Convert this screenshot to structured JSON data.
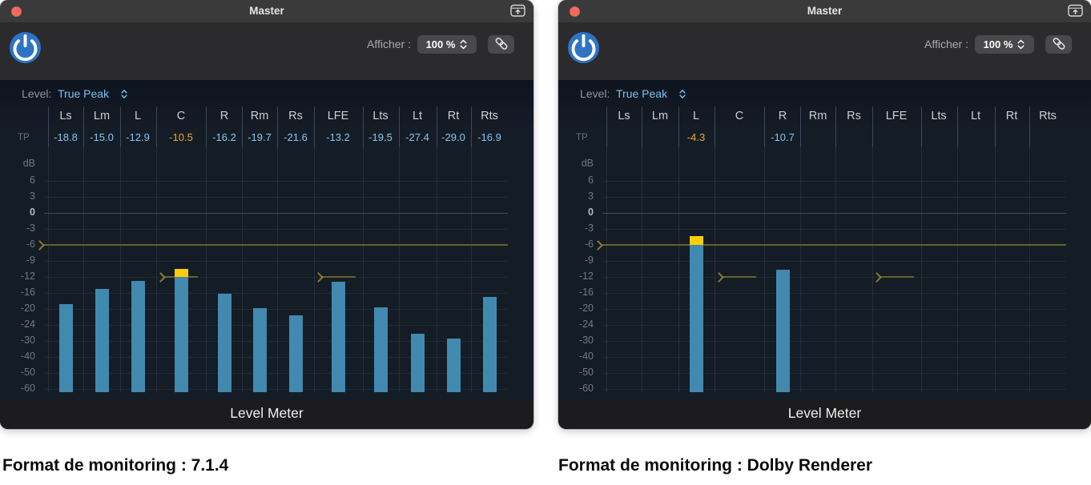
{
  "captions": {
    "left": "Format de monitoring : 7.1.4",
    "right": "Format de monitoring : Dolby Renderer"
  },
  "scale_ticks": [
    "6",
    "3",
    "0",
    "-3",
    "-6",
    "-9",
    "-12",
    "-16",
    "-20",
    "-24",
    "-30",
    "-40",
    "-50",
    "-60"
  ],
  "colors": {
    "bar_blue": "#4189ae",
    "peak_yellow": "#fccd08",
    "tp_text_blue": "#86c7ee",
    "tp_text_yellow": "#eaac29",
    "threshold_olive": "#6b6028",
    "channel_label": "#cacfd5",
    "db_label": "#6e7a89",
    "db_zero_label": "#b4bcc7",
    "level_value_blue": "#79c1f4",
    "power_blue": "#2e74c4",
    "close_red": "#ec6b5d"
  },
  "windows": [
    {
      "title": "Master",
      "afficher_label": "Afficher :",
      "zoom_value": "100 %",
      "level_label": "Level:",
      "level_value": "True Peak",
      "tp_row_label": "TP",
      "db_axis_label": "dB",
      "footer_label": "Level Meter",
      "thresholds": {
        "default": -6,
        "C": -12,
        "LFE": -12
      },
      "channels": [
        {
          "name": "Ls",
          "tp": "-18.8",
          "value": -18.8,
          "over": false
        },
        {
          "name": "Lm",
          "tp": "-15.0",
          "value": -15.0,
          "over": false
        },
        {
          "name": "L",
          "tp": "-12.9",
          "value": -12.9,
          "over": false
        },
        {
          "name": "C",
          "tp": "-10.5",
          "value": -10.5,
          "over": true
        },
        {
          "name": "R",
          "tp": "-16.2",
          "value": -16.2,
          "over": false
        },
        {
          "name": "Rm",
          "tp": "-19.7",
          "value": -19.7,
          "over": false
        },
        {
          "name": "Rs",
          "tp": "-21.6",
          "value": -21.6,
          "over": false
        },
        {
          "name": "LFE",
          "tp": "-13.2",
          "value": -13.2,
          "over": false
        },
        {
          "name": "Lts",
          "tp": "-19.5",
          "value": -19.5,
          "over": false
        },
        {
          "name": "Lt",
          "tp": "-27.4",
          "value": -27.4,
          "over": false
        },
        {
          "name": "Rt",
          "tp": "-29.0",
          "value": -29.0,
          "over": false
        },
        {
          "name": "Rts",
          "tp": "-16.9",
          "value": -16.9,
          "over": false
        }
      ]
    },
    {
      "title": "Master",
      "afficher_label": "Afficher :",
      "zoom_value": "100 %",
      "level_label": "Level:",
      "level_value": "True Peak",
      "tp_row_label": "TP",
      "db_axis_label": "dB",
      "footer_label": "Level Meter",
      "thresholds": {
        "default": -6,
        "C": -12,
        "LFE": -12
      },
      "channels": [
        {
          "name": "Ls",
          "tp": "",
          "value": null,
          "over": false
        },
        {
          "name": "Lm",
          "tp": "",
          "value": null,
          "over": false
        },
        {
          "name": "L",
          "tp": "-4.3",
          "value": -4.3,
          "over": true
        },
        {
          "name": "C",
          "tp": "",
          "value": null,
          "over": false
        },
        {
          "name": "R",
          "tp": "-10.7",
          "value": -10.7,
          "over": false
        },
        {
          "name": "Rm",
          "tp": "",
          "value": null,
          "over": false
        },
        {
          "name": "Rs",
          "tp": "",
          "value": null,
          "over": false
        },
        {
          "name": "LFE",
          "tp": "",
          "value": null,
          "over": false
        },
        {
          "name": "Lts",
          "tp": "",
          "value": null,
          "over": false
        },
        {
          "name": "Lt",
          "tp": "",
          "value": null,
          "over": false
        },
        {
          "name": "Rt",
          "tp": "",
          "value": null,
          "over": false
        },
        {
          "name": "Rts",
          "tp": "",
          "value": null,
          "over": false
        }
      ]
    }
  ]
}
